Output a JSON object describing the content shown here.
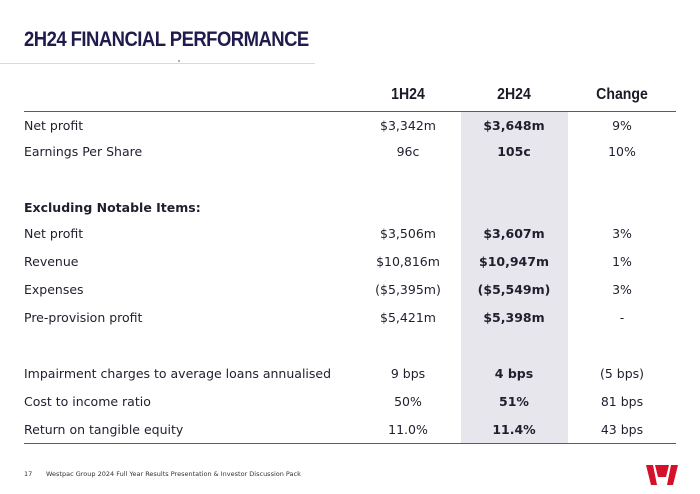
{
  "title": "2H24 FINANCIAL PERFORMANCE",
  "columns": [
    "1H24",
    "2H24",
    "Change"
  ],
  "rows": [
    {
      "label": "Net profit",
      "h1": "$3,342m",
      "h2": "$3,648m",
      "change": "9%"
    },
    {
      "label": "Earnings Per Share",
      "h1": "96c",
      "h2": "105c",
      "change": "10%"
    },
    {
      "label": "Excluding Notable Items:",
      "h1": "",
      "h2": "",
      "change": ""
    },
    {
      "label": "Net profit",
      "h1": "$3,506m",
      "h2": "$3,607m",
      "change": "3%"
    },
    {
      "label": "Revenue",
      "h1": "$10,816m",
      "h2": "$10,947m",
      "change": "1%"
    },
    {
      "label": "Expenses",
      "h1": "($5,395m)",
      "h2": "($5,549m)",
      "change": "3%"
    },
    {
      "label": "Pre-provision profit",
      "h1": "$5,421m",
      "h2": "$5,398m",
      "change": "-"
    },
    {
      "label": "Impairment charges to average loans annualised",
      "h1": "9 bps",
      "h2": "4 bps",
      "change": "(5 bps)"
    },
    {
      "label": "Cost to income ratio",
      "h1": "50%",
      "h2": "51%",
      "change": "81 bps"
    },
    {
      "label": "Return on tangible equity",
      "h1": "11.0%",
      "h2": "11.4%",
      "change": "43 bps"
    }
  ],
  "footer": {
    "page_number": "17",
    "text": "Westpac Group 2024 Full Year Results Presentation & Investor Discussion Pack"
  },
  "colors": {
    "accent_red": "#cf2a31",
    "title_navy": "#1f1c4d",
    "highlight_grey": "#e7e6ec"
  },
  "logo_icon": "westpac-w-logo"
}
